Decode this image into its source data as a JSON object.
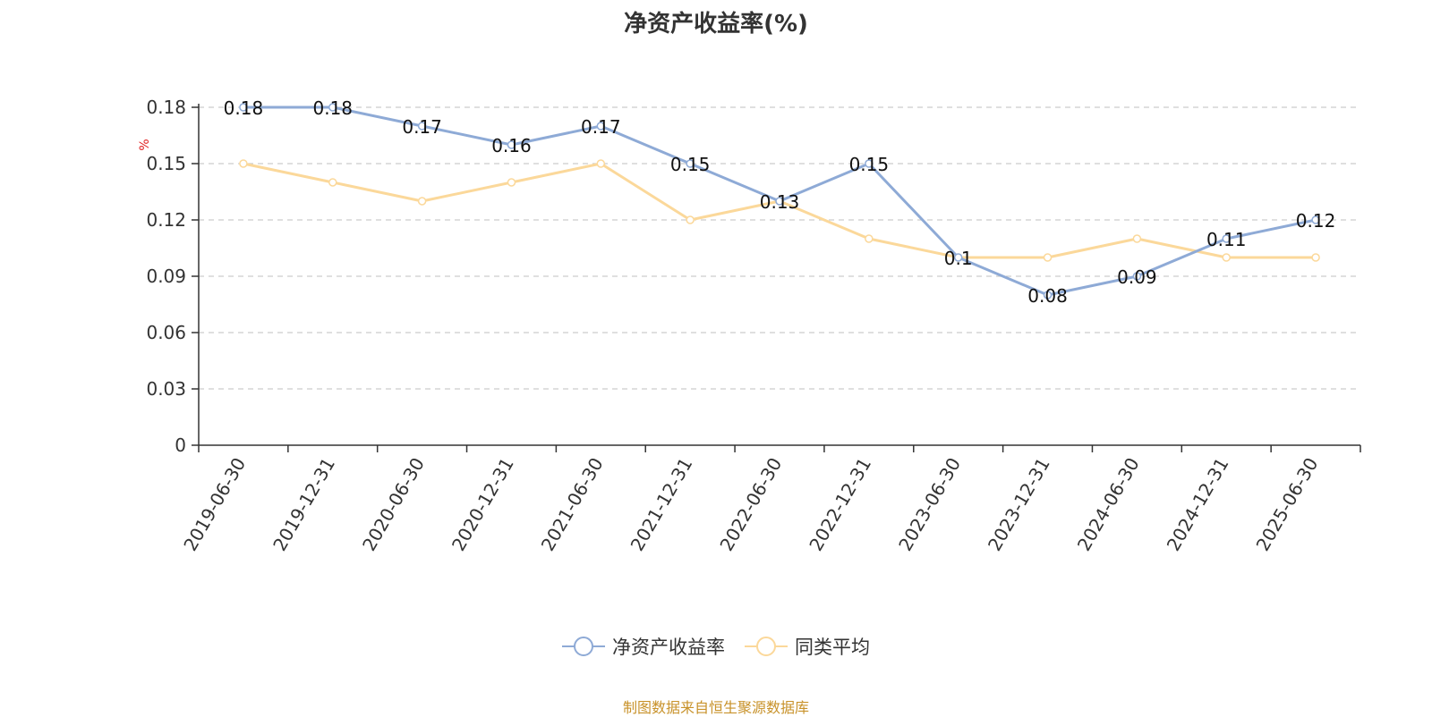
{
  "chart_data": {
    "type": "line",
    "title": "净资产收益率(%)",
    "ylabel": "%",
    "categories": [
      "2019-06-30",
      "2019-12-31",
      "2020-06-30",
      "2020-12-31",
      "2021-06-30",
      "2021-12-31",
      "2022-06-30",
      "2022-12-31",
      "2023-06-30",
      "2023-12-31",
      "2024-06-30",
      "2024-12-31",
      "2025-06-30"
    ],
    "series": [
      {
        "name": "净资产收益率",
        "color": "#8eaad6",
        "values": [
          0.18,
          0.18,
          0.17,
          0.16,
          0.17,
          0.15,
          0.13,
          0.15,
          0.1,
          0.08,
          0.09,
          0.11,
          0.12
        ],
        "labels": [
          "0.18",
          "0.18",
          "0.17",
          "0.16",
          "0.17",
          "0.15",
          "0.13",
          "0.15",
          "0.1",
          "0.08",
          "0.09",
          "0.11",
          "0.12"
        ]
      },
      {
        "name": "同类平均",
        "color": "#fbd89a",
        "values": [
          0.15,
          0.14,
          0.13,
          0.14,
          0.15,
          0.12,
          0.13,
          0.11,
          0.1,
          0.1,
          0.11,
          0.1,
          0.1
        ]
      }
    ],
    "ylim": [
      0,
      0.18
    ],
    "yticks": [
      "0",
      "0.03",
      "0.06",
      "0.09",
      "0.12",
      "0.15",
      "0.18"
    ],
    "grid": true,
    "legend_position": "bottom-center"
  },
  "footer": {
    "source": "制图数据来自恒生聚源数据库"
  }
}
